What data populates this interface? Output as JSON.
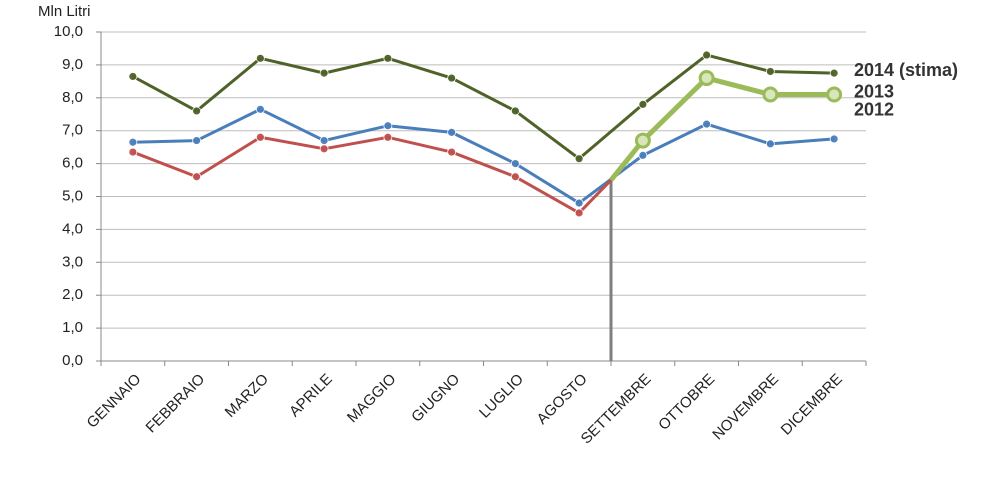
{
  "chart_data": {
    "type": "line",
    "y_label": "Mln Litri",
    "categories": [
      "GENNAIO",
      "FEBBRAIO",
      "MARZO",
      "APRILE",
      "MAGGIO",
      "GIUGNO",
      "LUGLIO",
      "AGOSTO",
      "SETTEMBRE",
      "OTTOBRE",
      "NOVEMBRE",
      "DICEMBRE"
    ],
    "series": [
      {
        "name": "2014 (stima)",
        "color": "#4f6228",
        "values": [
          8.65,
          7.6,
          9.2,
          8.75,
          9.2,
          8.6,
          7.6,
          6.15,
          7.8,
          9.3,
          8.8,
          8.75
        ]
      },
      {
        "name": "2012",
        "color": "#4a7ebb",
        "values": [
          6.65,
          6.7,
          7.65,
          6.7,
          7.15,
          6.95,
          6.0,
          4.8,
          6.25,
          7.2,
          6.6,
          6.75
        ]
      },
      {
        "color": "#c0504d",
        "values": [
          6.35,
          5.6,
          6.8,
          6.45,
          6.8,
          6.35,
          5.6,
          4.5,
          null,
          null,
          null,
          null
        ]
      },
      {
        "name": "2013",
        "color": "#9bbb59",
        "values": [
          null,
          null,
          null,
          null,
          null,
          null,
          null,
          null,
          6.7,
          8.6,
          8.1,
          8.1
        ]
      }
    ],
    "split_value": 5.5,
    "ylim": [
      0,
      10
    ],
    "yticks": [
      {
        "value": 0,
        "label": "0,0"
      },
      {
        "value": 1,
        "label": "1,0"
      },
      {
        "value": 2,
        "label": "2,0"
      },
      {
        "value": 3,
        "label": "3,0"
      },
      {
        "value": 4,
        "label": "4,0"
      },
      {
        "value": 5,
        "label": "5,0"
      },
      {
        "value": 6,
        "label": "6,0"
      },
      {
        "value": 7,
        "label": "7,0"
      },
      {
        "value": 8,
        "label": "8,0"
      },
      {
        "value": 9,
        "label": "9,0"
      },
      {
        "value": 10,
        "label": "10,0"
      }
    ],
    "grid": true
  }
}
